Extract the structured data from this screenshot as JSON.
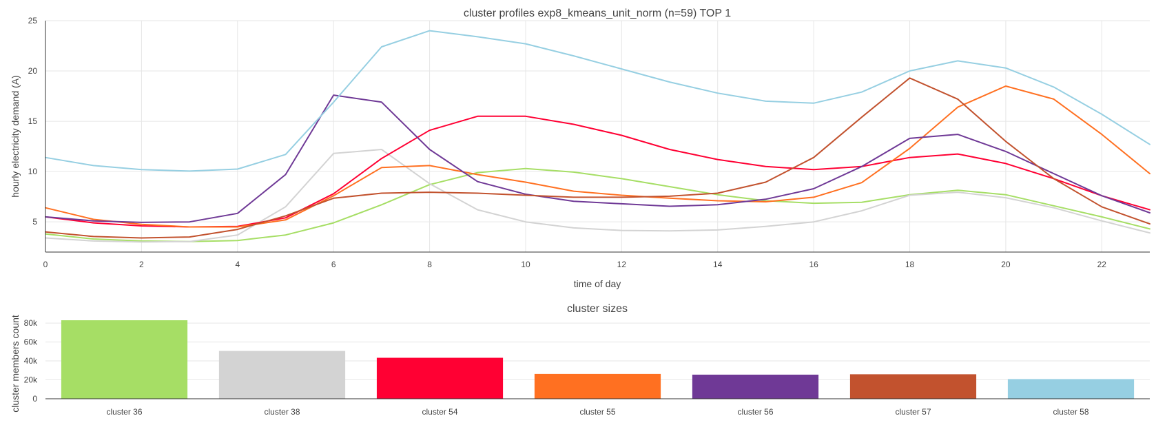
{
  "chart_data": [
    {
      "type": "line",
      "title": "cluster profiles exp8_kmeans_unit_norm (n=59) TOP 1",
      "xlabel": "time of day",
      "ylabel": "hourly electricity demand (A)",
      "xlim": [
        0,
        23
      ],
      "ylim": [
        2,
        25
      ],
      "xticks": [
        0,
        2,
        4,
        6,
        8,
        10,
        12,
        14,
        16,
        18,
        20,
        22
      ],
      "yticks": [
        5,
        10,
        15,
        20,
        25
      ],
      "grid": true,
      "x": [
        0,
        1,
        2,
        3,
        4,
        5,
        6,
        7,
        8,
        9,
        10,
        11,
        12,
        13,
        14,
        15,
        16,
        17,
        18,
        19,
        20,
        21,
        22,
        23
      ],
      "series": [
        {
          "color": "#a6de65",
          "values": [
            3.8,
            3.3,
            3.1,
            3.05,
            3.15,
            3.7,
            4.9,
            6.7,
            8.7,
            9.9,
            10.3,
            9.95,
            9.3,
            8.5,
            7.7,
            7.1,
            6.85,
            6.95,
            7.7,
            8.15,
            7.7,
            6.6,
            5.5,
            4.3
          ]
        },
        {
          "color": "#d3d3d3",
          "values": [
            3.4,
            3.1,
            3.0,
            3.05,
            3.7,
            6.5,
            11.8,
            12.2,
            8.8,
            6.2,
            5.0,
            4.4,
            4.15,
            4.1,
            4.2,
            4.55,
            5.0,
            6.1,
            7.65,
            7.95,
            7.4,
            6.4,
            5.1,
            3.9
          ]
        },
        {
          "color": "#ff0033",
          "values": [
            5.5,
            4.9,
            4.6,
            4.5,
            4.55,
            5.4,
            7.8,
            11.3,
            14.1,
            15.5,
            15.5,
            14.7,
            13.6,
            12.2,
            11.2,
            10.5,
            10.2,
            10.5,
            11.4,
            11.75,
            10.8,
            9.3,
            7.6,
            6.2
          ]
        },
        {
          "color": "#ff7021",
          "values": [
            6.4,
            5.25,
            4.75,
            4.5,
            4.5,
            5.2,
            7.6,
            10.4,
            10.6,
            9.7,
            8.95,
            8.05,
            7.65,
            7.35,
            7.1,
            7.0,
            7.45,
            8.9,
            12.3,
            16.4,
            18.5,
            17.2,
            13.7,
            9.8
          ]
        },
        {
          "color": "#6f3996",
          "values": [
            5.5,
            5.1,
            4.95,
            5.0,
            5.85,
            9.7,
            17.6,
            16.9,
            12.2,
            9.0,
            7.75,
            7.05,
            6.8,
            6.55,
            6.7,
            7.25,
            8.3,
            10.5,
            13.3,
            13.7,
            12.0,
            9.8,
            7.6,
            5.9
          ]
        },
        {
          "color": "#c2522e",
          "values": [
            4.0,
            3.55,
            3.4,
            3.5,
            4.25,
            5.6,
            7.35,
            7.85,
            7.95,
            7.85,
            7.65,
            7.45,
            7.45,
            7.55,
            7.85,
            8.95,
            11.4,
            15.4,
            19.3,
            17.2,
            13.0,
            9.3,
            6.5,
            4.8
          ]
        },
        {
          "color": "#96cfe2",
          "values": [
            11.4,
            10.6,
            10.2,
            10.05,
            10.25,
            11.7,
            16.9,
            22.4,
            24.0,
            23.4,
            22.7,
            21.5,
            20.2,
            18.9,
            17.8,
            17.0,
            16.8,
            17.9,
            20.0,
            21.0,
            20.3,
            18.4,
            15.7,
            12.7
          ]
        }
      ]
    },
    {
      "type": "bar",
      "title": "cluster sizes",
      "xlabel": "",
      "ylabel": "cluster members count",
      "ylim": [
        0,
        83000
      ],
      "yticks": [
        0,
        20000,
        40000,
        60000,
        80000
      ],
      "ytick_labels": [
        "0",
        "20k",
        "40k",
        "60k",
        "80k"
      ],
      "grid": true,
      "categories": [
        "cluster 36",
        "cluster 38",
        "cluster 54",
        "cluster 55",
        "cluster 56",
        "cluster 57",
        "cluster 58"
      ],
      "values": [
        83000,
        50500,
        43300,
        26300,
        25500,
        25900,
        20800
      ],
      "colors": [
        "#a6de65",
        "#d3d3d3",
        "#ff0033",
        "#ff7021",
        "#6f3996",
        "#c2522e",
        "#96cfe2"
      ]
    }
  ]
}
